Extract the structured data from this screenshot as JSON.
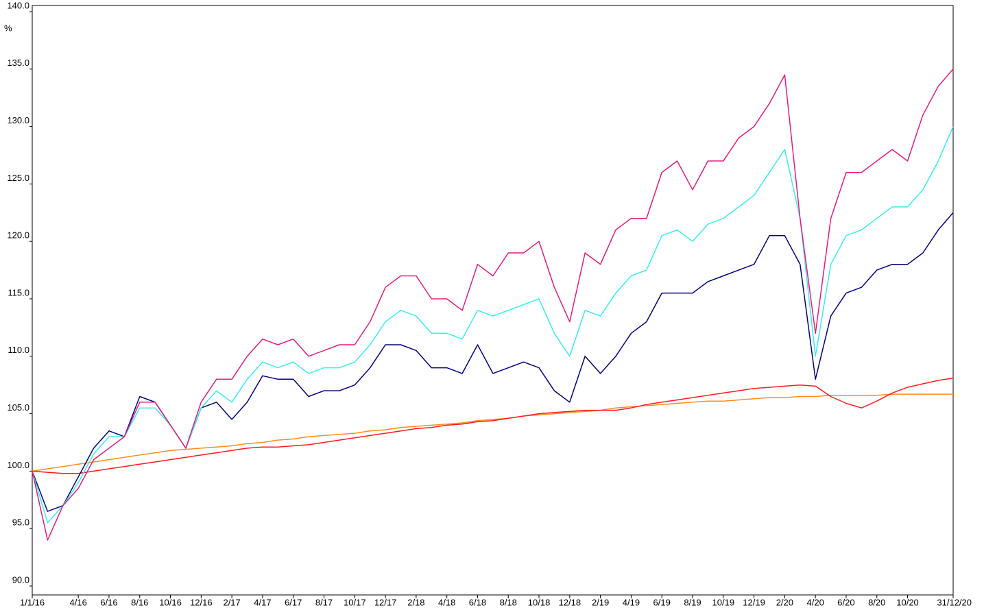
{
  "chart_data": {
    "type": "line",
    "y_label": "%",
    "x": [
      "1/1/16",
      "2/16",
      "3/16",
      "4/16",
      "5/16",
      "6/16",
      "7/16",
      "8/16",
      "9/16",
      "10/16",
      "11/16",
      "12/16",
      "1/17",
      "2/17",
      "3/17",
      "4/17",
      "5/17",
      "6/17",
      "7/17",
      "8/17",
      "9/17",
      "10/17",
      "11/17",
      "12/17",
      "1/18",
      "2/18",
      "3/18",
      "4/18",
      "5/18",
      "6/18",
      "7/18",
      "8/18",
      "9/18",
      "10/18",
      "11/18",
      "12/18",
      "1/19",
      "2/19",
      "3/19",
      "4/19",
      "5/19",
      "6/19",
      "7/19",
      "8/19",
      "9/19",
      "10/19",
      "11/19",
      "12/19",
      "1/20",
      "2/20",
      "3/20",
      "4/20",
      "5/20",
      "6/20",
      "7/20",
      "8/20",
      "9/20",
      "10/20",
      "11/20",
      "12/20",
      "31/12/20"
    ],
    "xlim": [
      "1/1/16",
      "31/12/20"
    ],
    "xticks": [
      "1/1/16",
      "4/16",
      "6/16",
      "8/16",
      "10/16",
      "12/16",
      "2/17",
      "4/17",
      "6/17",
      "8/17",
      "10/17",
      "12/17",
      "2/18",
      "4/18",
      "6/18",
      "8/18",
      "10/18",
      "12/18",
      "2/19",
      "4/19",
      "6/19",
      "8/19",
      "10/19",
      "12/19",
      "2/20",
      "4/20",
      "6/20",
      "8/20",
      "10/20",
      "31/12/20"
    ],
    "ylim": [
      90,
      140
    ],
    "yticks": [
      {
        "value": 90,
        "label": "90.0"
      },
      {
        "value": 95,
        "label": "95.0"
      },
      {
        "value": 100,
        "label": "100.0"
      },
      {
        "value": 105,
        "label": "105.0"
      },
      {
        "value": 110,
        "label": "110.0"
      },
      {
        "value": 115,
        "label": "115.0"
      },
      {
        "value": 120,
        "label": "120.0"
      },
      {
        "value": 125,
        "label": "125.0"
      },
      {
        "value": 130,
        "label": "130.0"
      },
      {
        "value": 135,
        "label": "135.0"
      },
      {
        "value": 140,
        "label": "140.0"
      }
    ],
    "series": [
      {
        "color": "#ff8c1a",
        "values": [
          100,
          100.2,
          100.4,
          100.6,
          100.8,
          101,
          101.2,
          101.4,
          101.6,
          101.8,
          101.9,
          102,
          102.1,
          102.2,
          102.4,
          102.5,
          102.7,
          102.8,
          103,
          103.1,
          103.2,
          103.3,
          103.5,
          103.6,
          103.8,
          103.9,
          104,
          104.1,
          104.2,
          104.4,
          104.5,
          104.6,
          104.8,
          104.9,
          105,
          105.1,
          105.2,
          105.3,
          105.5,
          105.6,
          105.7,
          105.8,
          105.9,
          106,
          106.1,
          106.1,
          106.2,
          106.3,
          106.4,
          106.4,
          106.5,
          106.5,
          106.6,
          106.6,
          106.6,
          106.6,
          106.7,
          106.7,
          106.7,
          106.7,
          106.7
        ]
      },
      {
        "color": "#ff1a1a",
        "values": [
          100,
          99.9,
          99.8,
          99.8,
          100,
          100.2,
          100.4,
          100.6,
          100.8,
          101,
          101.2,
          101.4,
          101.6,
          101.8,
          102,
          102.1,
          102.1,
          102.2,
          102.3,
          102.5,
          102.7,
          102.9,
          103.1,
          103.3,
          103.5,
          103.7,
          103.8,
          104,
          104.1,
          104.3,
          104.4,
          104.6,
          104.8,
          105,
          105.1,
          105.2,
          105.3,
          105.3,
          105.3,
          105.5,
          105.8,
          106,
          106.2,
          106.4,
          106.6,
          106.8,
          107,
          107.2,
          107.3,
          107.4,
          107.5,
          107.4,
          106.5,
          105.9,
          105.5,
          106.1,
          106.8,
          107.3,
          107.6,
          107.9,
          108.1
        ]
      },
      {
        "color": "#000080",
        "values": [
          100,
          96.5,
          97,
          99.5,
          102,
          103.5,
          103,
          106.5,
          106,
          104,
          102,
          105.5,
          106,
          104.5,
          106,
          108.3,
          108,
          108,
          106.5,
          107,
          107,
          107.5,
          109,
          111,
          111,
          110.5,
          109,
          109,
          108.5,
          111,
          108.5,
          109,
          109.5,
          109,
          107,
          106,
          110,
          108.5,
          110,
          112,
          113,
          115.5,
          115.5,
          115.5,
          116.5,
          117,
          117.5,
          118,
          120.5,
          120.5,
          118,
          108,
          113.5,
          115.5,
          116,
          117.5,
          118,
          118,
          119,
          121,
          122.5
        ]
      },
      {
        "color": "#33f0f0",
        "values": [
          100,
          95.5,
          97,
          99,
          101.5,
          103,
          103,
          105.5,
          105.5,
          104,
          102,
          105.5,
          107,
          106,
          108,
          109.5,
          109,
          109.5,
          108.5,
          109,
          109,
          109.5,
          111,
          113,
          114,
          113.5,
          112,
          112,
          111.5,
          114,
          113.5,
          114,
          114.5,
          115,
          112,
          110,
          114,
          113.5,
          115.5,
          117,
          117.5,
          120.5,
          121,
          120,
          121.5,
          122,
          123,
          124,
          126,
          128,
          122,
          110,
          118,
          120.5,
          121,
          122,
          123,
          123,
          124.5,
          127,
          130
        ]
      },
      {
        "color": "#e8197f",
        "values": [
          100,
          94,
          97,
          98.5,
          101,
          102,
          103,
          106,
          106,
          104,
          102,
          106,
          108,
          108,
          110,
          111.5,
          111,
          111.5,
          110,
          110.5,
          111,
          111,
          113,
          116,
          117,
          117,
          115,
          115,
          114,
          118,
          117,
          119,
          119,
          120,
          116,
          113,
          119,
          118,
          121,
          122,
          122,
          126,
          127,
          124.5,
          127,
          127,
          129,
          130,
          132,
          134.5,
          122,
          112,
          122,
          126,
          126,
          127,
          128,
          127,
          131,
          133.5,
          135
        ]
      }
    ]
  }
}
